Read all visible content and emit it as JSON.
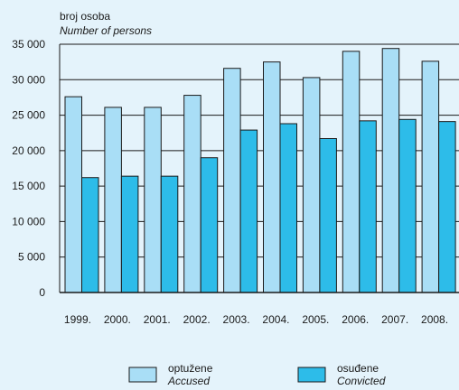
{
  "chart_data": {
    "type": "bar",
    "ylabel": "broj osoba",
    "ylabel_en": "Number of persons",
    "categories": [
      "1999.",
      "2000.",
      "2001.",
      "2002.",
      "2003.",
      "2004.",
      "2005.",
      "2006.",
      "2007.",
      "2008."
    ],
    "ylim": [
      0,
      35000
    ],
    "yticks": [
      0,
      5000,
      10000,
      15000,
      20000,
      25000,
      30000,
      35000
    ],
    "ytick_labels": [
      "0",
      "5 000",
      "10 000",
      "15 000",
      "20 000",
      "25 000",
      "30 000",
      "35 000"
    ],
    "grid": true,
    "legend_position": "bottom",
    "series": [
      {
        "name": "optužene",
        "name_en": "Accused",
        "color": "#a9def6",
        "values": [
          27600,
          26100,
          26100,
          27800,
          31600,
          32500,
          30300,
          34000,
          34400,
          32600
        ]
      },
      {
        "name": "osuđene",
        "name_en": "Convicted",
        "color": "#2dbce9",
        "values": [
          16200,
          16400,
          16400,
          19000,
          22900,
          23800,
          21700,
          24200,
          24400,
          24100
        ]
      }
    ]
  }
}
